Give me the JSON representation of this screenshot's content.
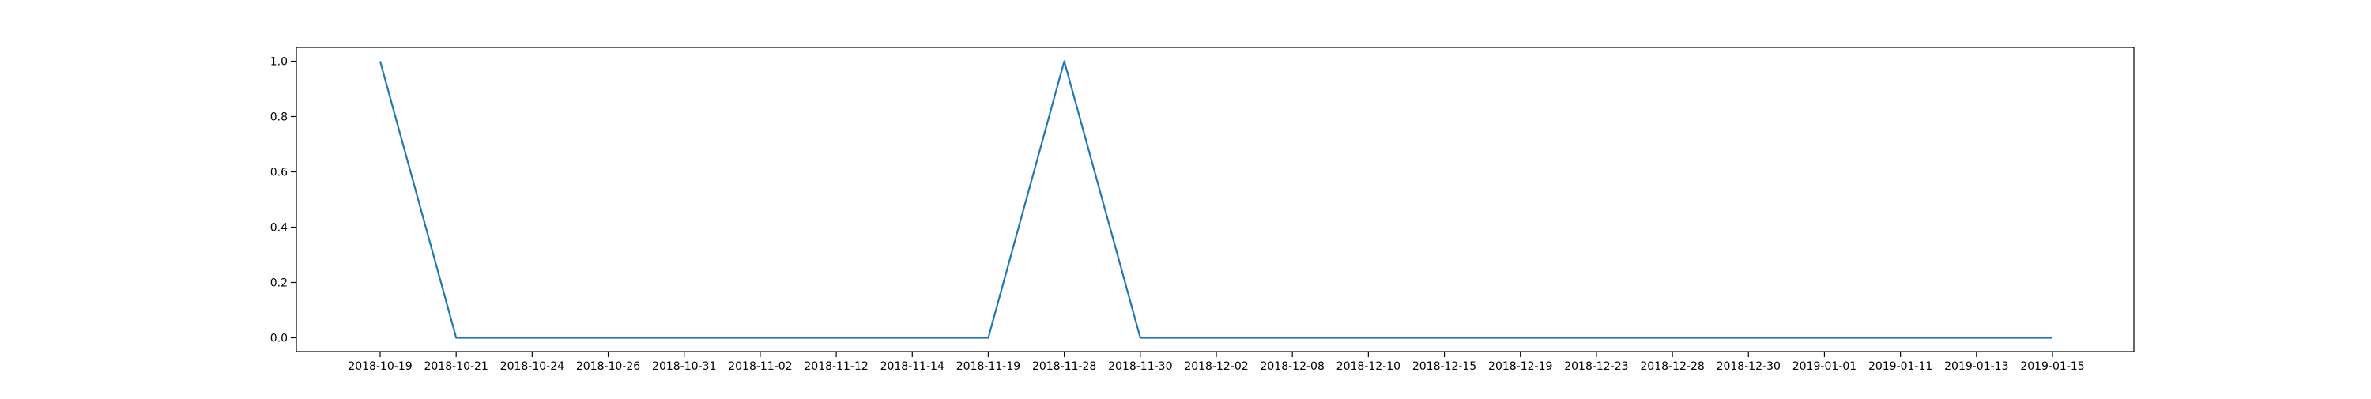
{
  "chart_data": {
    "type": "line",
    "title": "",
    "xlabel": "",
    "ylabel": "",
    "grid": false,
    "legend": "none",
    "x": [
      "2018-10-19",
      "2018-10-21",
      "2018-10-24",
      "2018-10-26",
      "2018-10-31",
      "2018-11-02",
      "2018-11-12",
      "2018-11-14",
      "2018-11-19",
      "2018-11-28",
      "2018-11-30",
      "2018-12-02",
      "2018-12-08",
      "2018-12-10",
      "2018-12-15",
      "2018-12-19",
      "2018-12-23",
      "2018-12-28",
      "2018-12-30",
      "2019-01-01",
      "2019-01-11",
      "2019-01-13",
      "2019-01-15"
    ],
    "series": [
      {
        "color": "#1f77b4",
        "values": [
          1.0,
          0.0,
          0.0,
          0.0,
          0.0,
          0.0,
          0.0,
          0.0,
          0.0,
          1.0,
          0.0,
          0.0,
          0.0,
          0.0,
          0.0,
          0.0,
          0.0,
          0.0,
          0.0,
          0.0,
          0.0,
          0.0,
          0.0
        ]
      }
    ],
    "ylim": [
      -0.05,
      1.05
    ],
    "yticks": [
      0.0,
      0.2,
      0.4,
      0.6,
      0.8,
      1.0
    ],
    "ytick_labels": [
      "0.0",
      "0.2",
      "0.4",
      "0.6",
      "0.8",
      "1.0"
    ]
  }
}
